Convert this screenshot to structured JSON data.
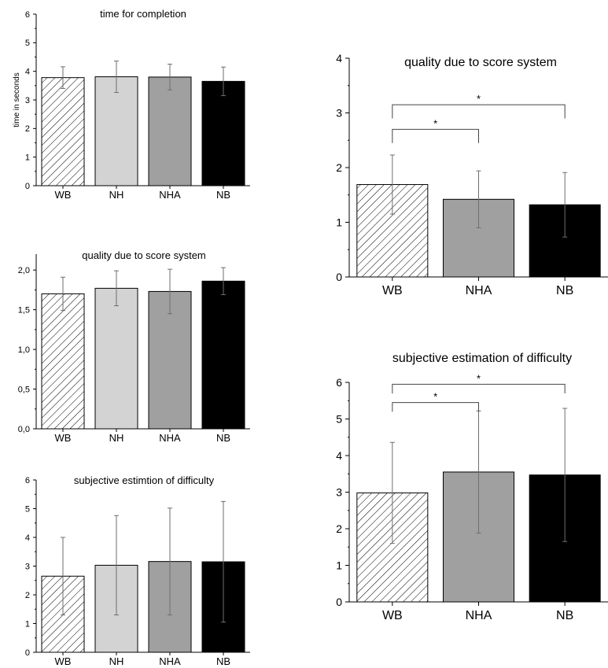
{
  "chart_data": [
    {
      "id": "left-time",
      "type": "bar",
      "title": "time for completion",
      "ylabel": "time in seconds",
      "categories": [
        "WB",
        "NH",
        "NHA",
        "NB"
      ],
      "values": [
        3.78,
        3.81,
        3.8,
        3.65
      ],
      "errors": [
        0.38,
        0.55,
        0.45,
        0.5
      ],
      "ylim": [
        0,
        6
      ],
      "yticks": [
        0,
        1,
        2,
        3,
        4,
        5,
        6
      ],
      "ytick_labels": [
        "0",
        "1",
        "2",
        "3",
        "4",
        "5",
        "6"
      ],
      "fills": [
        "hatch",
        "#d3d3d3",
        "#a0a0a0",
        "#000000"
      ],
      "significance": []
    },
    {
      "id": "left-quality",
      "type": "bar",
      "title": "quality due to score system",
      "ylabel": "",
      "categories": [
        "WB",
        "NH",
        "NHA",
        "NB"
      ],
      "values": [
        1.7,
        1.77,
        1.73,
        1.86
      ],
      "errors": [
        0.21,
        0.22,
        0.28,
        0.17
      ],
      "ylim": [
        0,
        2.2
      ],
      "yticks": [
        0,
        0.5,
        1.0,
        1.5,
        2.0
      ],
      "ytick_labels": [
        "0,0",
        "0,5",
        "1,0",
        "1,5",
        "2,0"
      ],
      "fills": [
        "hatch",
        "#d3d3d3",
        "#a0a0a0",
        "#000000"
      ],
      "significance": []
    },
    {
      "id": "left-difficulty",
      "type": "bar",
      "title": "subjective estimtion of difficulty",
      "ylabel": "",
      "categories": [
        "WB",
        "NH",
        "NHA",
        "NB"
      ],
      "values": [
        2.65,
        3.03,
        3.16,
        3.15
      ],
      "errors": [
        1.35,
        1.73,
        1.86,
        2.1
      ],
      "ylim": [
        0,
        6
      ],
      "yticks": [
        0,
        1,
        2,
        3,
        4,
        5,
        6
      ],
      "ytick_labels": [
        "0",
        "1",
        "2",
        "3",
        "4",
        "5",
        "6"
      ],
      "fills": [
        "hatch",
        "#d3d3d3",
        "#a0a0a0",
        "#000000"
      ],
      "significance": []
    },
    {
      "id": "right-quality",
      "type": "bar",
      "title": "quality due to score system",
      "ylabel": "",
      "categories": [
        "WB",
        "NHA",
        "NB"
      ],
      "values": [
        1.69,
        1.42,
        1.32
      ],
      "errors": [
        0.54,
        0.52,
        0.59
      ],
      "ylim": [
        0,
        4
      ],
      "yticks": [
        0,
        1,
        2,
        3,
        4
      ],
      "ytick_labels": [
        "0",
        "1",
        "2",
        "3",
        "4"
      ],
      "fills": [
        "hatch",
        "#a0a0a0",
        "#000000"
      ],
      "significance": [
        {
          "from": 0,
          "to": 1,
          "level": 2.7,
          "label": "*"
        },
        {
          "from": 0,
          "to": 2,
          "level": 3.15,
          "label": "*"
        }
      ]
    },
    {
      "id": "right-difficulty",
      "type": "bar",
      "title": "subjective estimation of difficulty",
      "ylabel": "",
      "categories": [
        "WB",
        "NHA",
        "NB"
      ],
      "values": [
        2.98,
        3.55,
        3.47
      ],
      "errors": [
        1.38,
        1.67,
        1.82
      ],
      "ylim": [
        0,
        6
      ],
      "yticks": [
        0,
        1,
        2,
        3,
        4,
        5,
        6
      ],
      "ytick_labels": [
        "0",
        "1",
        "2",
        "3",
        "4",
        "5",
        "6"
      ],
      "fills": [
        "hatch",
        "#a0a0a0",
        "#000000"
      ],
      "significance": [
        {
          "from": 0,
          "to": 1,
          "level": 5.45,
          "label": "*"
        },
        {
          "from": 0,
          "to": 2,
          "level": 5.95,
          "label": "*"
        }
      ]
    }
  ]
}
